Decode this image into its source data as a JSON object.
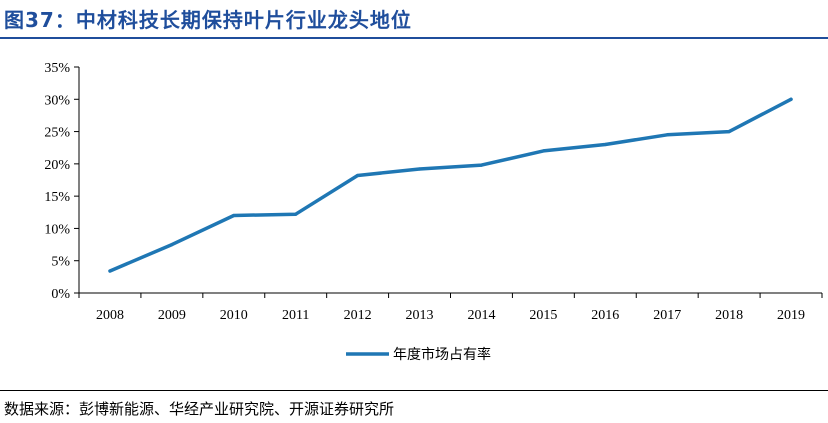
{
  "title": "图37：中材科技长期保持叶片行业龙头地位",
  "source": "数据来源：彭博新能源、华经产业研究院、开源证券研究所",
  "colors": {
    "title": "#1f4e9c",
    "line": "#1f77b4"
  },
  "chart_data": {
    "type": "line",
    "categories": [
      "2008",
      "2009",
      "2010",
      "2011",
      "2012",
      "2013",
      "2014",
      "2015",
      "2016",
      "2017",
      "2018",
      "2019"
    ],
    "series": [
      {
        "name": "年度市场占有率",
        "values": [
          3.4,
          7.5,
          12.0,
          12.2,
          18.2,
          19.2,
          19.8,
          22.0,
          23.0,
          24.5,
          25.0,
          30.0
        ]
      }
    ],
    "y_ticks": [
      "0%",
      "5%",
      "10%",
      "15%",
      "20%",
      "25%",
      "30%",
      "35%"
    ],
    "ylim": [
      0,
      35
    ],
    "y_unit": "%",
    "legend": "bottom-center",
    "grid": false
  }
}
